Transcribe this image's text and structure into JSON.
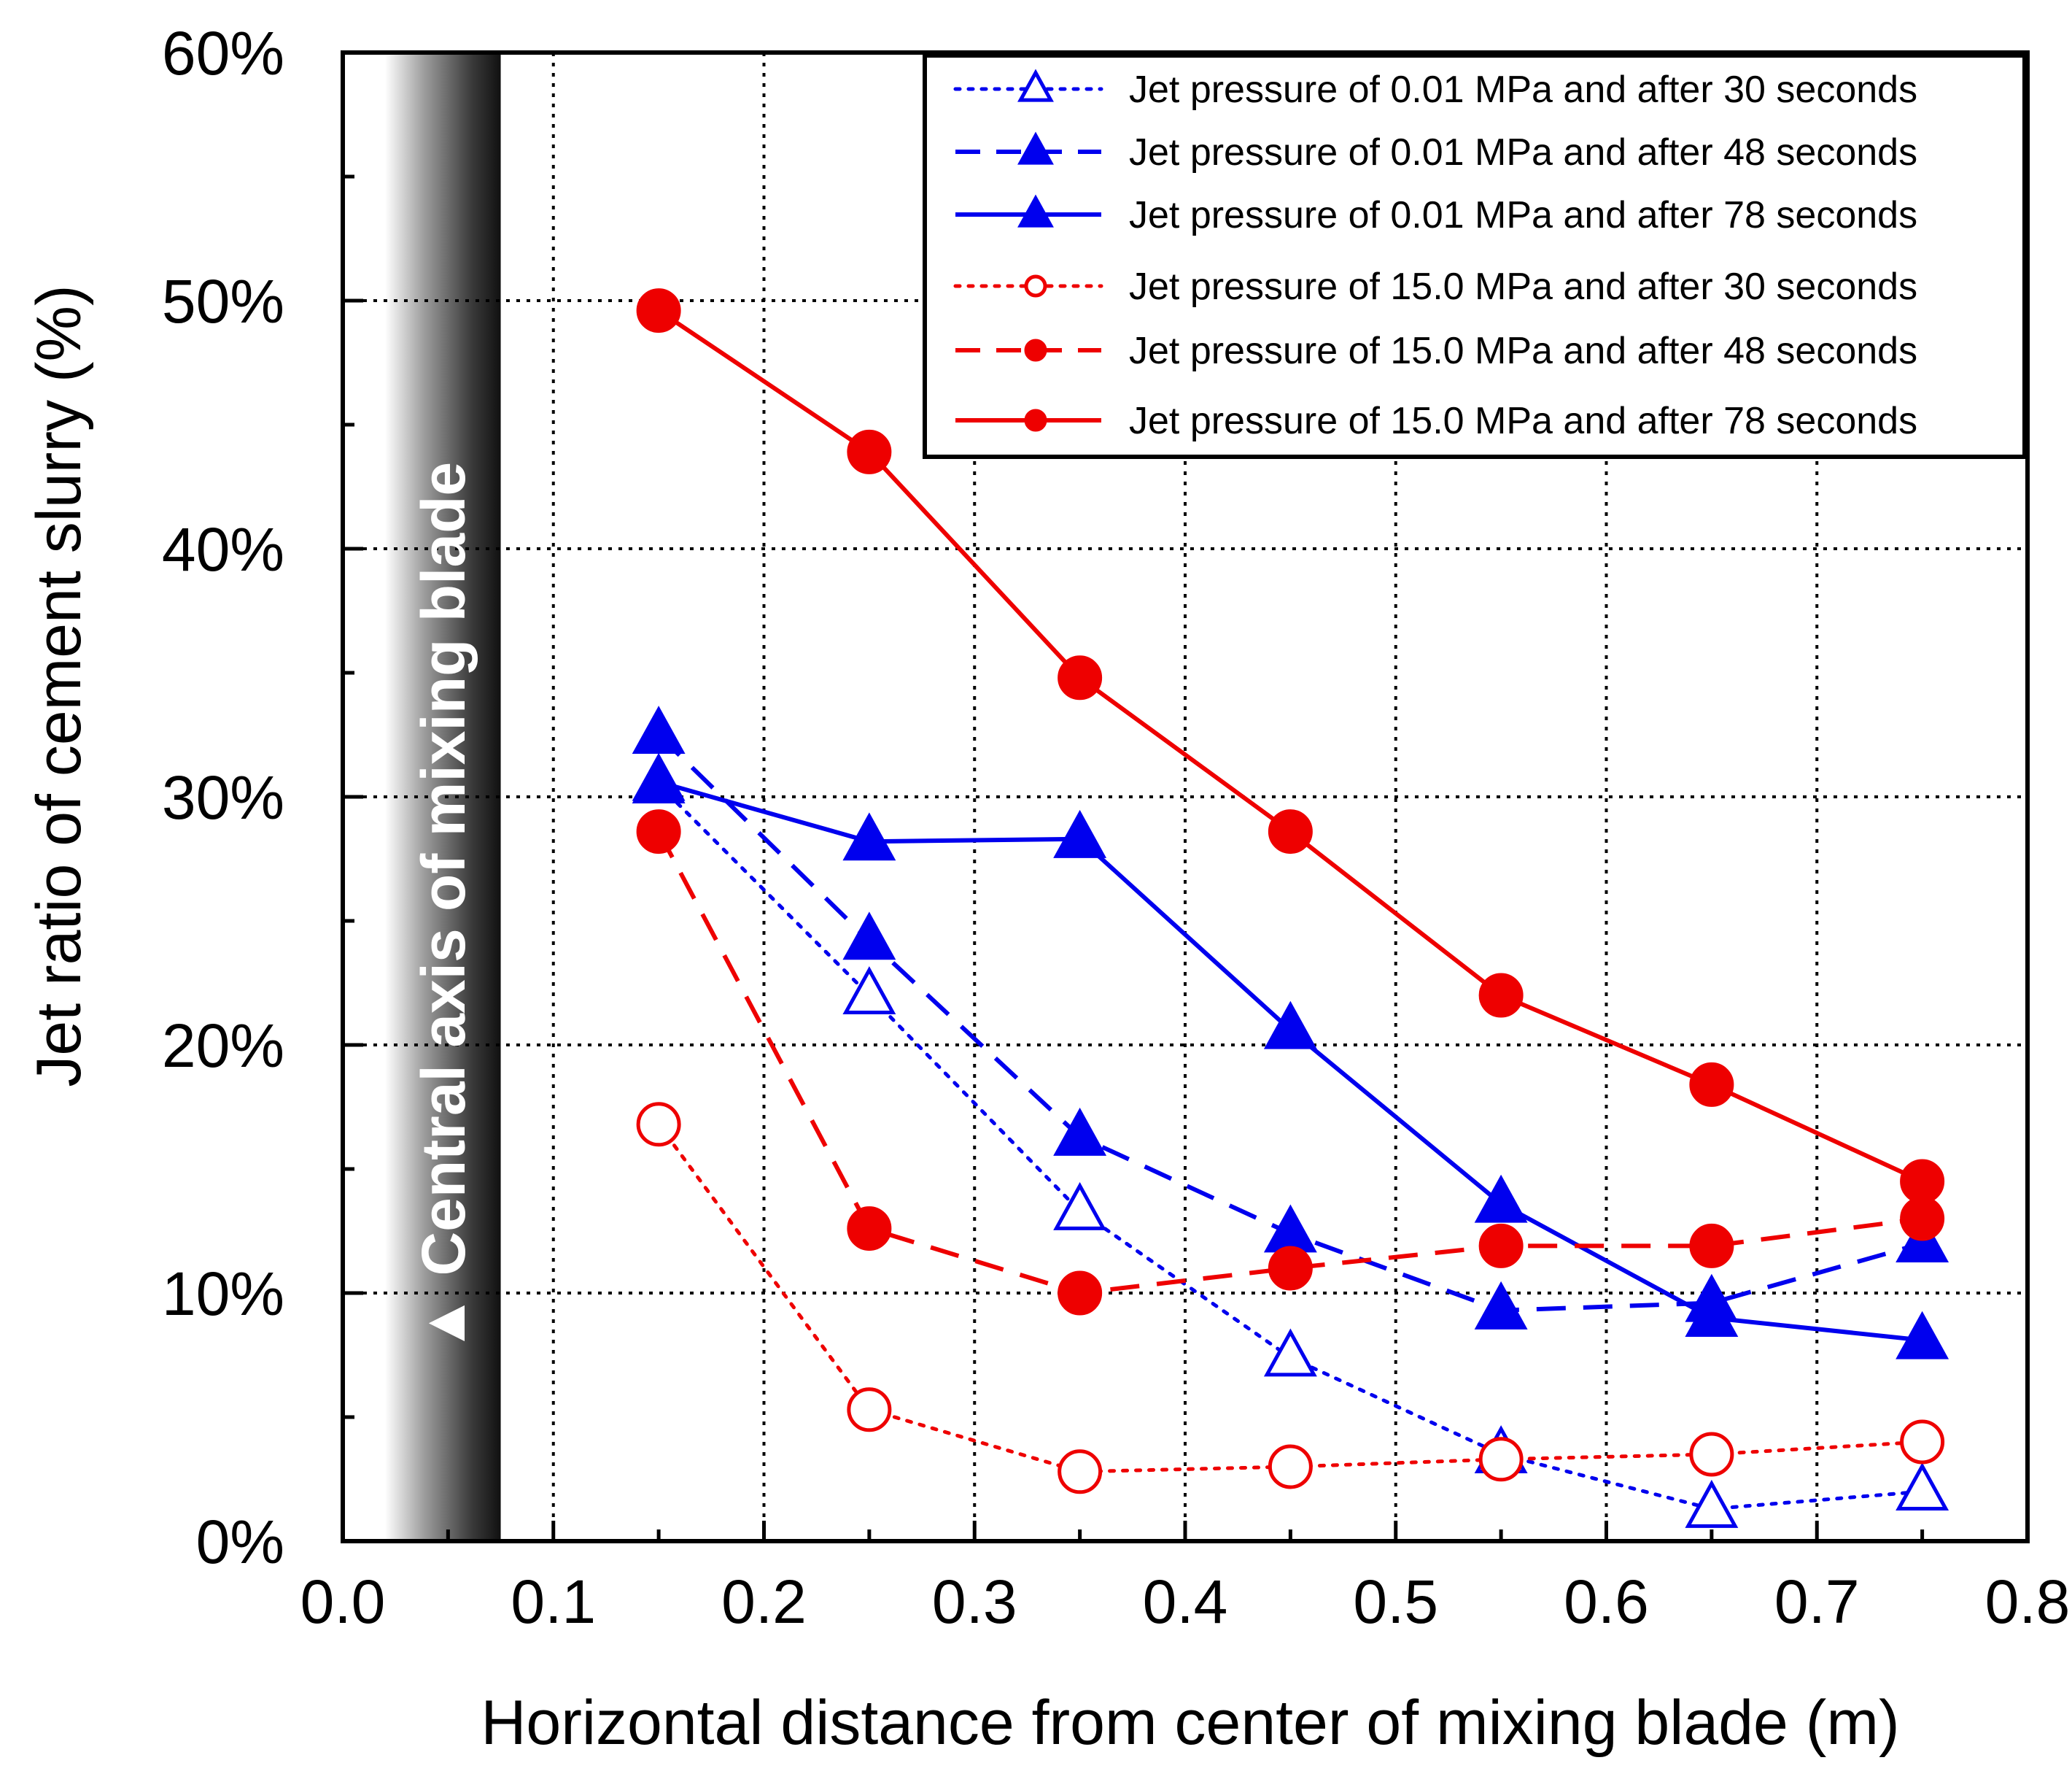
{
  "chart_data": {
    "type": "line",
    "title": "",
    "xlabel": "Horizontal distance from center of mixing blade (m)",
    "ylabel": "Jet ratio of cement slurry (%)",
    "xlim": [
      0.0,
      0.8
    ],
    "ylim": [
      0,
      60
    ],
    "x_ticks": [
      "0.0",
      "0.1",
      "0.2",
      "0.3",
      "0.4",
      "0.5",
      "0.6",
      "0.7",
      "0.8"
    ],
    "x_tick_values": [
      0.0,
      0.1,
      0.2,
      0.3,
      0.4,
      0.5,
      0.6,
      0.7,
      0.8
    ],
    "y_ticks": [
      "0%",
      "10%",
      "20%",
      "30%",
      "40%",
      "50%",
      "60%"
    ],
    "y_tick_values": [
      0,
      10,
      20,
      30,
      40,
      50,
      60
    ],
    "grid": true,
    "legend_position": "top-right",
    "shaded_region": {
      "x_range": [
        0.02,
        0.075
      ],
      "label": "Central axis of mixing blade",
      "marker": "▲"
    },
    "x": [
      0.15,
      0.25,
      0.35,
      0.45,
      0.55,
      0.65,
      0.75
    ],
    "series": [
      {
        "name": "Jet pressure of 0.01 MPa and after 30 seconds",
        "color": "#0000ee",
        "style": "dotted",
        "marker": "triangle",
        "filled": false,
        "x": [
          0.15,
          0.25,
          0.35,
          0.45,
          0.55,
          0.65,
          0.75
        ],
        "values": [
          30.5,
          22.0,
          13.3,
          7.4,
          3.5,
          1.3,
          2.0
        ]
      },
      {
        "name": "Jet pressure of 0.01 MPa and after 48 seconds",
        "color": "#0000ee",
        "style": "dashed",
        "marker": "triangle",
        "filled": true,
        "x": [
          0.15,
          0.25,
          0.35,
          0.45,
          0.55,
          0.65,
          0.75
        ],
        "values": [
          32.5,
          24.2,
          16.3,
          12.4,
          9.3,
          9.6,
          12.0
        ]
      },
      {
        "name": "Jet pressure of 0.01 MPa and after 78 seconds",
        "color": "#0000ee",
        "style": "solid",
        "marker": "triangle",
        "filled": true,
        "x": [
          0.15,
          0.25,
          0.35,
          0.45,
          0.55,
          0.65,
          0.75
        ],
        "values": [
          30.6,
          28.2,
          28.3,
          20.6,
          13.6,
          9.0,
          8.1
        ]
      },
      {
        "name": "Jet pressure of 15.0 MPa and after 30 seconds",
        "color": "#ee0000",
        "style": "dotted",
        "marker": "circle",
        "filled": false,
        "x": [
          0.15,
          0.25,
          0.35,
          0.45,
          0.55,
          0.65,
          0.75
        ],
        "values": [
          16.8,
          5.3,
          2.8,
          3.0,
          3.3,
          3.5,
          4.0
        ]
      },
      {
        "name": "Jet pressure of 15.0 MPa and after 48 seconds",
        "color": "#ee0000",
        "style": "dashed",
        "marker": "circle",
        "filled": true,
        "x": [
          0.15,
          0.25,
          0.35,
          0.45,
          0.55,
          0.65,
          0.75
        ],
        "values": [
          28.6,
          12.6,
          10.0,
          11.0,
          11.9,
          11.9,
          13.0
        ]
      },
      {
        "name": "Jet pressure of 15.0 MPa and after 78 seconds",
        "color": "#ee0000",
        "style": "solid",
        "marker": "circle",
        "filled": true,
        "x": [
          0.15,
          0.25,
          0.35,
          0.45,
          0.55,
          0.65,
          0.75
        ],
        "values": [
          49.6,
          43.9,
          34.8,
          28.6,
          22.0,
          18.4,
          14.5
        ]
      }
    ]
  }
}
